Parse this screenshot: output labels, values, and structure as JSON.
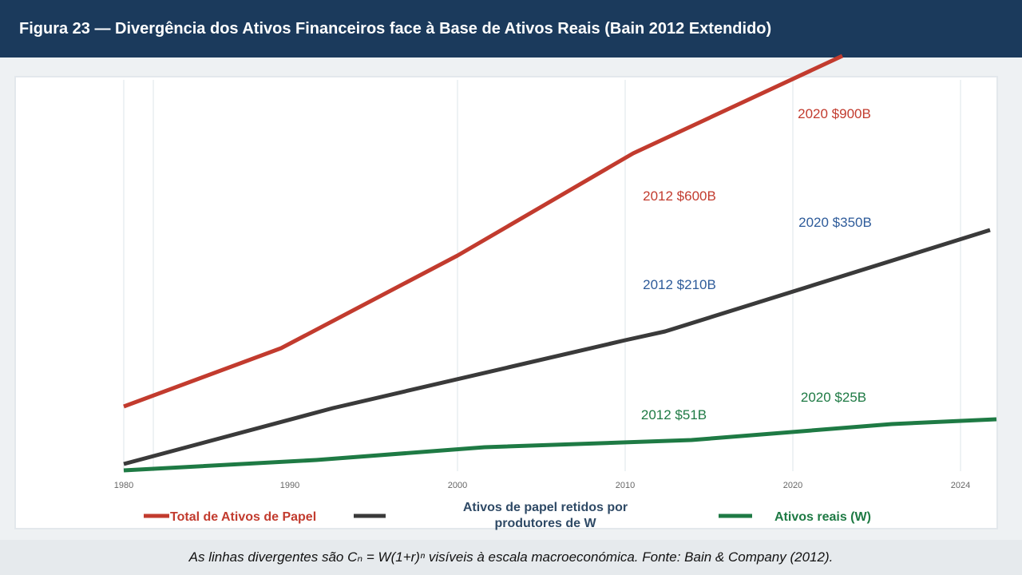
{
  "header": {
    "title": "Figura 23 — Divergência dos Ativos Financeiros face à Base de Ativos Reais (Bain 2012 Extendido)"
  },
  "footer": {
    "caption": "As linhas divergentes são Cₙ = W(1+r)ⁿ visíveis à escala macroeconómica. Fonte: Bain & Company (2012)."
  },
  "chart_data": {
    "type": "line",
    "title": "Figura 23 — Divergência dos Ativos Financeiros face à Base de Ativos Reais (Bain 2012 Extendido)",
    "x_ticks": [
      "1980",
      "1990",
      "2000",
      "2010",
      "2020",
      "2024"
    ],
    "grid": "vertical",
    "legend_position": "bottom",
    "series": [
      {
        "name": "Total de Ativos de Papel",
        "color": "#c23b2e",
        "points": [
          [
            1980,
            395
          ],
          [
            1990,
            465
          ],
          [
            2000,
            590
          ],
          [
            2010,
            710
          ],
          [
            2022,
            840
          ]
        ]
      },
      {
        "name": "Ativos de papel  retidos por produtores de W",
        "color": "#3a3a3a",
        "points": [
          [
            1980,
            320
          ],
          [
            1993,
            390
          ],
          [
            2010,
            465
          ],
          [
            2013,
            480
          ],
          [
            2024,
            630
          ]
        ]
      },
      {
        "name": "Ativos reais (W)",
        "color": "#1e7a44",
        "points": [
          [
            1980,
            312
          ],
          [
            1992,
            325
          ],
          [
            2002,
            342
          ],
          [
            2014,
            352
          ],
          [
            2026,
            372
          ],
          [
            2026.5,
            375
          ]
        ]
      }
    ],
    "annotations": [
      {
        "text": "2020 $900B",
        "color": "#c23b2e"
      },
      {
        "text": "2012 $600B",
        "color": "#c23b2e"
      },
      {
        "text": "2020 $350B",
        "color": "#2e5b9a"
      },
      {
        "text": "2012 $210B",
        "color": "#2e5b9a"
      },
      {
        "text": "2020 $25B",
        "color": "#1e7a44"
      },
      {
        "text": "2012 $51B",
        "color": "#1e7a44"
      }
    ]
  }
}
